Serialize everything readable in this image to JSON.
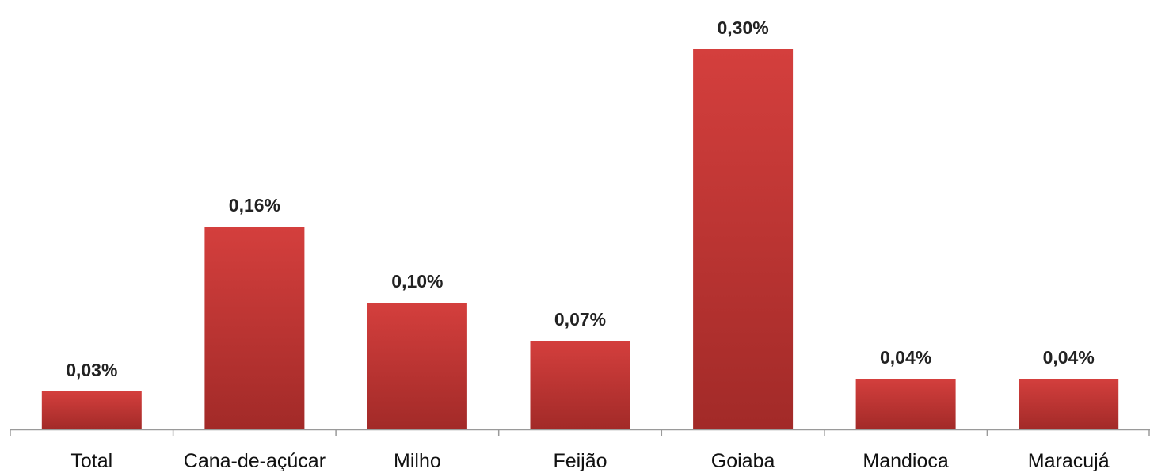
{
  "chart_data": {
    "type": "bar",
    "title": "",
    "xlabel": "",
    "ylabel": "",
    "categories": [
      "Total",
      "Cana-de-açúcar",
      "Milho",
      "Feijão",
      "Goiaba",
      "Mandioca",
      "Maracujá"
    ],
    "values": [
      0.03,
      0.16,
      0.1,
      0.07,
      0.3,
      0.04,
      0.04
    ],
    "data_labels": [
      "0,03%",
      "0,16%",
      "0,10%",
      "0,07%",
      "0,30%",
      "0,04%",
      "0,04%"
    ],
    "ylim": [
      0,
      0.32
    ],
    "grid": false,
    "legend": "none",
    "colors": {
      "bar_top": "#d43f3d",
      "bar_bottom": "#a22a28",
      "axis": "#9a9a9a"
    }
  }
}
